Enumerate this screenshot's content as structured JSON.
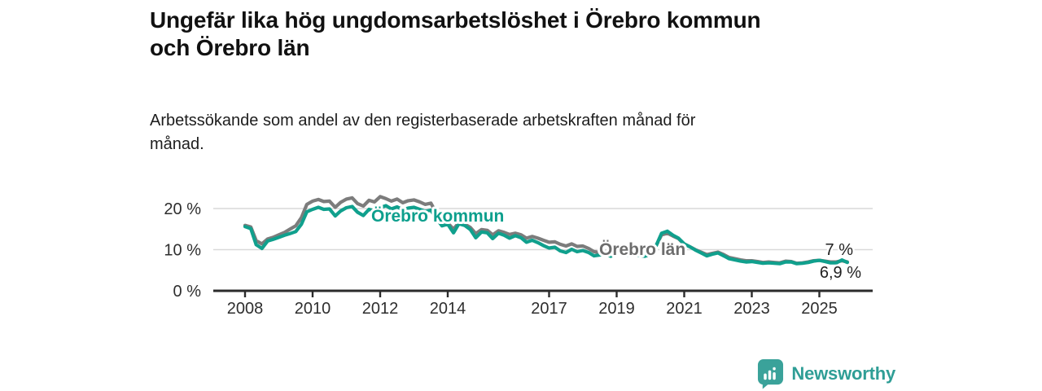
{
  "header": {
    "title_lines": [
      "Ungefär lika hög ungdomsarbetslöshet i Örebro kommun",
      "och Örebro län"
    ],
    "subtitle_lines": [
      "Arbetssökande som andel av den registerbaserade arbetskraften månad för",
      "månad."
    ]
  },
  "footer": {
    "brand": "Newsworthy",
    "logo_color": "#3aa29a"
  },
  "colors": {
    "kommun_line": "#10a08d",
    "lan_line": "#7c7c7c",
    "kommun_label": "#0d9f8d",
    "lan_label": "#6d6d6d",
    "gridline": "#d9d9d9",
    "axis": "#2b2b2b"
  },
  "chart_data": {
    "type": "line",
    "title": "Ungefär lika hög ungdomsarbetslöshet i Örebro kommun och Örebro län",
    "subtitle": "Arbetssökande som andel av den registerbaserade arbetskraften månad för månad.",
    "unit": "%",
    "grid": "horizontal",
    "legend_position": "inline-labels",
    "x_range": [
      2008,
      2025.9
    ],
    "ylim": [
      0,
      25
    ],
    "x_ticks": [
      2008,
      2010,
      2012,
      2014,
      2017,
      2019,
      2021,
      2023,
      2025
    ],
    "y_ticks": [
      {
        "value": 0,
        "label": "0 %"
      },
      {
        "value": 10,
        "label": "10 %"
      },
      {
        "value": 20,
        "label": "20 %"
      }
    ],
    "x": [
      2008,
      2008.17,
      2008.33,
      2008.5,
      2008.67,
      2008.83,
      2009,
      2009.17,
      2009.33,
      2009.5,
      2009.67,
      2009.83,
      2010,
      2010.17,
      2010.33,
      2010.5,
      2010.67,
      2010.83,
      2011,
      2011.17,
      2011.33,
      2011.5,
      2011.67,
      2011.83,
      2012,
      2012.17,
      2012.33,
      2012.5,
      2012.67,
      2012.83,
      2013,
      2013.17,
      2013.33,
      2013.5,
      2013.67,
      2013.83,
      2014,
      2014.17,
      2014.33,
      2014.5,
      2014.67,
      2014.83,
      2015,
      2015.17,
      2015.33,
      2015.5,
      2015.67,
      2015.83,
      2016,
      2016.17,
      2016.33,
      2016.5,
      2016.67,
      2016.83,
      2017,
      2017.17,
      2017.33,
      2017.5,
      2017.67,
      2017.83,
      2018,
      2018.17,
      2018.33,
      2018.5,
      2018.67,
      2018.83,
      2019,
      2019.17,
      2019.33,
      2019.5,
      2019.67,
      2019.83,
      2020,
      2020.17,
      2020.33,
      2020.5,
      2020.67,
      2020.83,
      2021,
      2021.17,
      2021.33,
      2021.5,
      2021.67,
      2021.83,
      2022,
      2022.17,
      2022.33,
      2022.5,
      2022.67,
      2022.83,
      2023,
      2023.17,
      2023.33,
      2023.5,
      2023.67,
      2023.83,
      2024,
      2024.17,
      2024.33,
      2024.5,
      2024.67,
      2024.83,
      2025,
      2025.17,
      2025.33,
      2025.5,
      2025.67,
      2025.83
    ],
    "series": [
      {
        "name": "Örebro län",
        "color": "#7c7c7c",
        "label_color": "#6d6d6d",
        "end_label": "7 %",
        "end_value": 7.0,
        "values": [
          15.9,
          15.5,
          12.2,
          11.4,
          12.6,
          13.0,
          13.6,
          14.2,
          15.0,
          15.8,
          17.8,
          21.0,
          21.8,
          22.2,
          21.7,
          21.8,
          20.3,
          21.5,
          22.3,
          22.6,
          21.2,
          20.6,
          22.0,
          21.6,
          22.9,
          22.4,
          21.8,
          22.3,
          21.4,
          21.9,
          22.1,
          21.6,
          21.0,
          21.3,
          18.8,
          16.6,
          16.5,
          15.0,
          16.6,
          16.2,
          15.4,
          13.9,
          14.9,
          14.7,
          13.6,
          14.6,
          14.2,
          13.7,
          14.0,
          13.6,
          12.8,
          13.2,
          12.8,
          12.3,
          11.8,
          11.9,
          11.3,
          10.9,
          11.4,
          10.8,
          10.9,
          10.3,
          9.5,
          9.3,
          9.4,
          8.9,
          9.6,
          9.4,
          9.1,
          9.2,
          8.9,
          8.7,
          9.1,
          11.0,
          13.6,
          14.0,
          13.3,
          12.7,
          11.3,
          10.7,
          10.0,
          9.4,
          8.8,
          9.1,
          9.4,
          8.8,
          8.1,
          7.8,
          7.5,
          7.3,
          7.3,
          7.1,
          6.9,
          7.0,
          6.9,
          6.8,
          7.2,
          7.1,
          6.7,
          6.8,
          7.0,
          7.3,
          7.4,
          7.2,
          7.0,
          7.0,
          7.3,
          7.0
        ]
      },
      {
        "name": "Örebro kommun",
        "color": "#10a08d",
        "label_color": "#0d9f8d",
        "end_label": "6,9 %",
        "end_value": 6.9,
        "values": [
          15.6,
          15.1,
          11.2,
          10.3,
          12.1,
          12.5,
          13.0,
          13.5,
          13.9,
          14.4,
          16.2,
          19.2,
          19.8,
          20.3,
          19.8,
          19.9,
          18.2,
          19.4,
          20.2,
          20.5,
          19.1,
          18.3,
          19.8,
          19.4,
          20.2,
          20.7,
          19.9,
          20.4,
          19.7,
          20.1,
          20.3,
          19.8,
          19.3,
          19.6,
          17.5,
          15.8,
          16.2,
          14.1,
          16.3,
          15.9,
          14.9,
          12.9,
          14.3,
          14.1,
          12.7,
          14.0,
          13.5,
          12.8,
          13.4,
          12.9,
          11.8,
          12.3,
          11.7,
          11.0,
          10.4,
          10.6,
          9.7,
          9.3,
          10.1,
          9.5,
          9.8,
          9.3,
          8.5,
          8.7,
          8.9,
          8.4,
          9.3,
          9.1,
          8.7,
          8.9,
          8.6,
          8.4,
          8.9,
          11.0,
          14.0,
          14.5,
          13.5,
          12.8,
          11.4,
          10.7,
          9.9,
          9.2,
          8.5,
          8.9,
          9.2,
          8.5,
          7.8,
          7.5,
          7.2,
          7.0,
          7.1,
          6.9,
          6.7,
          6.8,
          6.7,
          6.6,
          7.0,
          7.0,
          6.6,
          6.7,
          6.9,
          7.2,
          7.4,
          7.1,
          6.8,
          6.8,
          7.5,
          6.9
        ]
      }
    ]
  }
}
